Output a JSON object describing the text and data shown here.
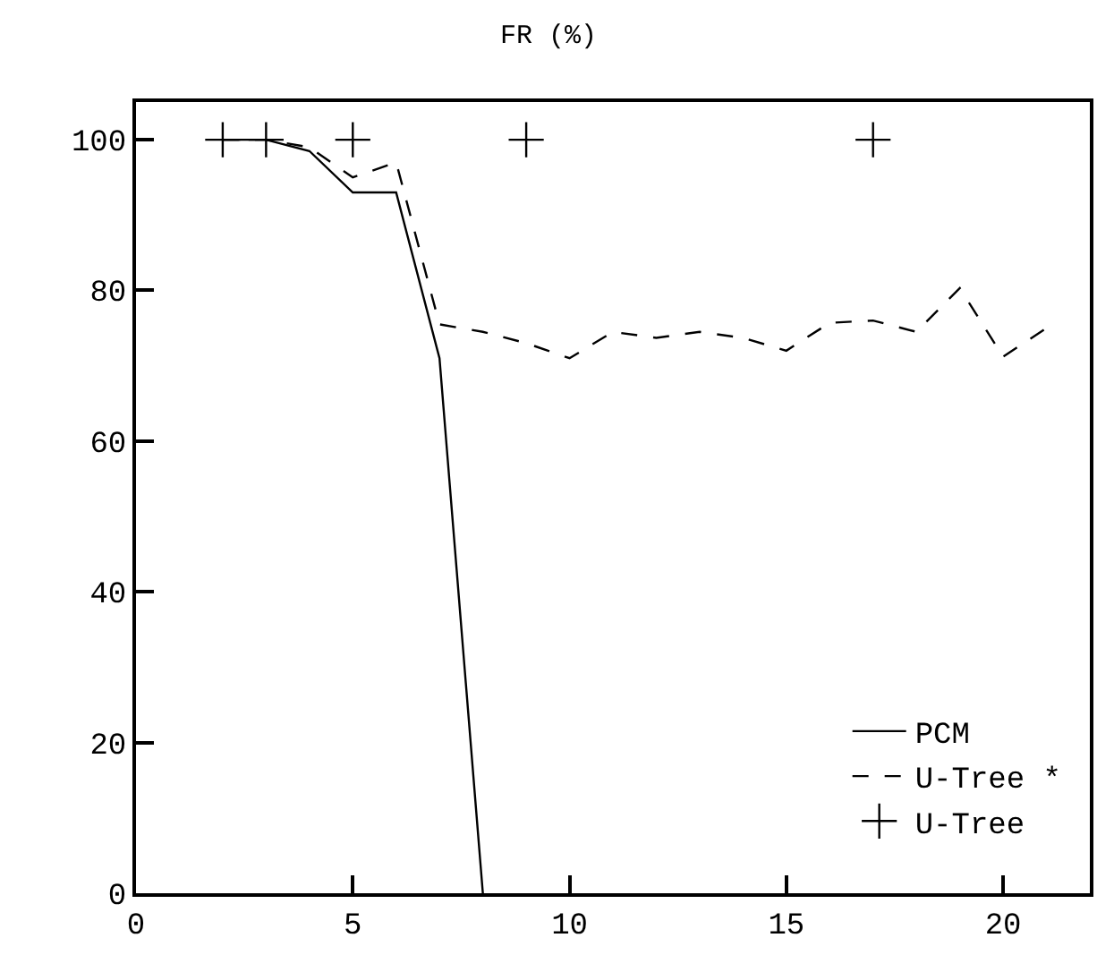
{
  "chart_data": {
    "type": "line",
    "title": "FR (%)",
    "xlim": [
      0,
      22
    ],
    "xticks": [
      0,
      5,
      10,
      15,
      20
    ],
    "ylim": [
      0,
      105
    ],
    "yticks": [
      0,
      20,
      40,
      60,
      80,
      100
    ],
    "legend": "bottom right",
    "series": [
      {
        "name": "PCM",
        "color": "#000000",
        "line_style": "solid",
        "marker": "none",
        "x": [
          2,
          3,
          4,
          5,
          6,
          7,
          8
        ],
        "values": [
          100,
          100,
          98.5,
          93,
          93,
          71,
          0
        ]
      },
      {
        "name": "U-Tree *",
        "color": "#000000",
        "line_style": "dashed",
        "marker": "none",
        "x": [
          2,
          3,
          4,
          5,
          6,
          7,
          8,
          9,
          10,
          11,
          12,
          13,
          14,
          15,
          16,
          17,
          18,
          19,
          20,
          21
        ],
        "values": [
          100,
          100,
          99,
          95,
          97,
          75.5,
          74.5,
          73,
          71,
          74.5,
          73.7,
          74.5,
          73.7,
          72,
          75.7,
          76,
          74.5,
          80.3,
          71.2,
          75
        ]
      },
      {
        "name": "U-Tree",
        "color": "#000000",
        "type": "scatter",
        "marker": "cross",
        "x": [
          2,
          3,
          5,
          9,
          17
        ],
        "values": [
          100,
          100,
          100,
          100,
          100
        ]
      }
    ]
  }
}
